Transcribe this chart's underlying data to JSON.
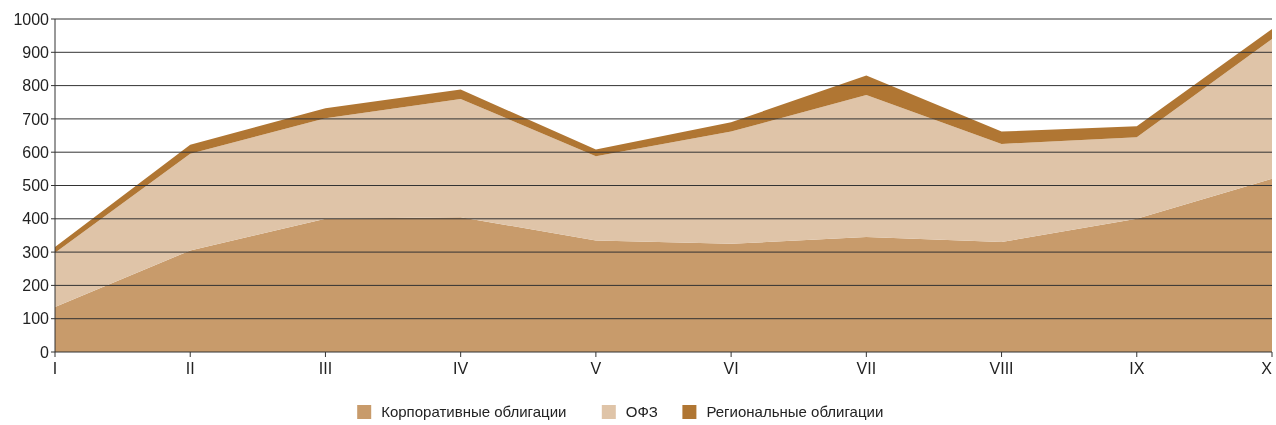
{
  "chart_data": {
    "type": "area",
    "stacked": true,
    "categories": [
      "I",
      "II",
      "III",
      "IV",
      "V",
      "VI",
      "VII",
      "VIII",
      "IX",
      "X"
    ],
    "series": [
      {
        "name": "Корпоративные облигации",
        "color": "#c89b6b",
        "values": [
          135,
          305,
          400,
          405,
          335,
          325,
          345,
          330,
          400,
          520
        ]
      },
      {
        "name": "ОФЗ",
        "color": "#dfc4a8",
        "values": [
          163,
          290,
          302,
          355,
          253,
          337,
          427,
          295,
          245,
          420
        ]
      },
      {
        "name": "Региональные облигации",
        "color": "#b07633",
        "values": [
          17,
          27,
          30,
          28,
          20,
          28,
          58,
          37,
          33,
          30
        ]
      }
    ],
    "ylim": [
      0,
      1000
    ],
    "yticks": [
      0,
      100,
      200,
      300,
      400,
      500,
      600,
      700,
      800,
      900,
      1000
    ],
    "grid": "y",
    "legend": "bottom"
  }
}
